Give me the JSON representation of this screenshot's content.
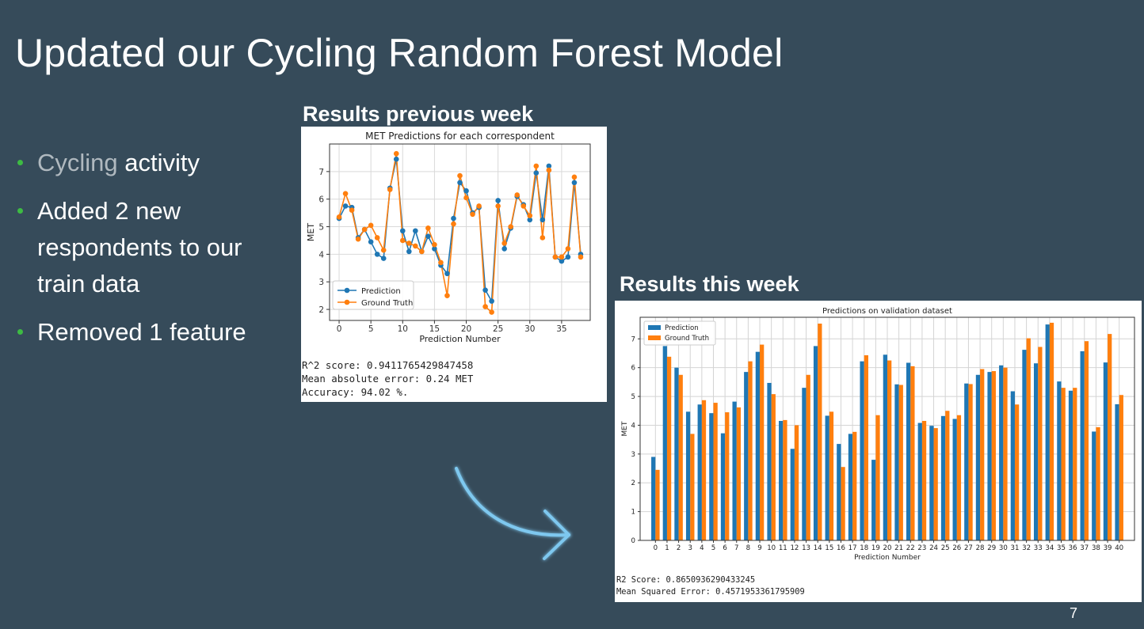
{
  "slide": {
    "title": "Updated our Cycling Random Forest Model",
    "page_number": "7",
    "bullets": [
      {
        "muted": "Cycling",
        "text": " activity"
      },
      {
        "muted": "",
        "text": "Added 2 new respondents to our train data"
      },
      {
        "muted": "",
        "text": "Removed 1 feature"
      }
    ],
    "previous_heading": "Results previous week",
    "current_heading": "Results this week",
    "previous_stats": [
      "R^2 score: 0.9411765429847458",
      "Mean absolute error:  0.24 MET",
      "Accuracy: 94.02 %."
    ],
    "current_stats": [
      "R2 Score: 0.8650936290433245",
      "Mean Squared Error: 0.4571953361795909"
    ],
    "arrow_color": "#7ec8ef"
  },
  "chart_data": [
    {
      "type": "line",
      "title": "MET Predictions for each correspondent",
      "xlabel": "Prediction Number",
      "ylabel": "MET",
      "xlim": [
        -1.5,
        39.5
      ],
      "ylim": [
        1.6,
        8.0
      ],
      "xticks": [
        0,
        5,
        10,
        15,
        20,
        25,
        30,
        35
      ],
      "yticks": [
        2,
        3,
        4,
        5,
        6,
        7
      ],
      "grid": true,
      "legend_position": "lower-left",
      "x": [
        0,
        1,
        2,
        3,
        4,
        5,
        6,
        7,
        8,
        9,
        10,
        11,
        12,
        13,
        14,
        15,
        16,
        17,
        18,
        19,
        20,
        21,
        22,
        23,
        24,
        25,
        26,
        27,
        28,
        29,
        30,
        31,
        32,
        33,
        34,
        35,
        36,
        37,
        38
      ],
      "series": [
        {
          "name": "Prediction",
          "color": "#1f77b4",
          "values": [
            5.3,
            5.75,
            5.7,
            4.6,
            4.9,
            4.45,
            4.0,
            3.85,
            6.4,
            7.45,
            4.85,
            4.1,
            4.85,
            4.1,
            4.65,
            4.2,
            3.6,
            3.3,
            5.3,
            6.6,
            6.3,
            5.5,
            5.7,
            2.7,
            2.3,
            5.95,
            4.2,
            4.95,
            6.1,
            5.8,
            5.25,
            6.95,
            5.25,
            7.2,
            3.9,
            3.75,
            3.9,
            6.6,
            4.0
          ]
        },
        {
          "name": "Ground Truth",
          "color": "#ff7f0e",
          "values": [
            5.35,
            6.2,
            5.6,
            4.55,
            4.9,
            5.05,
            4.6,
            4.15,
            6.35,
            7.65,
            4.5,
            4.4,
            4.3,
            4.1,
            4.95,
            4.35,
            3.7,
            2.5,
            5.1,
            6.85,
            6.05,
            5.45,
            5.75,
            2.1,
            1.9,
            5.75,
            4.4,
            5.0,
            6.15,
            5.75,
            5.4,
            7.2,
            4.6,
            7.05,
            3.9,
            3.9,
            4.2,
            6.8,
            3.9
          ]
        }
      ]
    },
    {
      "type": "bar",
      "title": "Predictions on validation dataset",
      "xlabel": "Prediction Number",
      "ylabel": "MET",
      "ylim": [
        0,
        7.75
      ],
      "yticks": [
        0,
        1,
        2,
        3,
        4,
        5,
        6,
        7
      ],
      "grid": true,
      "legend_position": "top-left",
      "categories": [
        "0",
        "1",
        "2",
        "3",
        "4",
        "5",
        "6",
        "7",
        "8",
        "9",
        "10",
        "11",
        "12",
        "13",
        "14",
        "15",
        "16",
        "17",
        "18",
        "19",
        "20",
        "21",
        "22",
        "23",
        "24",
        "25",
        "26",
        "27",
        "28",
        "29",
        "30",
        "31",
        "32",
        "33",
        "34",
        "35",
        "36",
        "37",
        "38",
        "39",
        "40"
      ],
      "series": [
        {
          "name": "Prediction",
          "color": "#1f77b4",
          "values": [
            2.9,
            6.75,
            6.0,
            4.47,
            4.72,
            4.42,
            3.72,
            4.82,
            5.85,
            6.55,
            5.47,
            4.15,
            3.18,
            5.3,
            6.75,
            4.33,
            3.35,
            3.7,
            6.22,
            2.8,
            6.45,
            5.42,
            6.17,
            4.08,
            3.98,
            4.32,
            4.22,
            5.45,
            5.75,
            5.85,
            6.08,
            5.18,
            6.62,
            6.15,
            7.5,
            5.52,
            5.2,
            6.57,
            3.78,
            6.18,
            4.73
          ]
        },
        {
          "name": "Ground Truth",
          "color": "#ff7f0e",
          "values": [
            2.45,
            6.38,
            5.75,
            3.7,
            4.87,
            4.78,
            4.45,
            4.62,
            6.22,
            6.8,
            5.08,
            4.18,
            4.0,
            5.75,
            7.53,
            4.47,
            2.55,
            3.77,
            6.43,
            4.35,
            6.25,
            5.4,
            6.05,
            4.15,
            3.9,
            4.5,
            4.35,
            5.43,
            5.95,
            5.88,
            6.0,
            4.72,
            7.02,
            6.72,
            7.56,
            5.3,
            5.3,
            6.92,
            3.93,
            7.17,
            5.05
          ]
        }
      ]
    }
  ]
}
